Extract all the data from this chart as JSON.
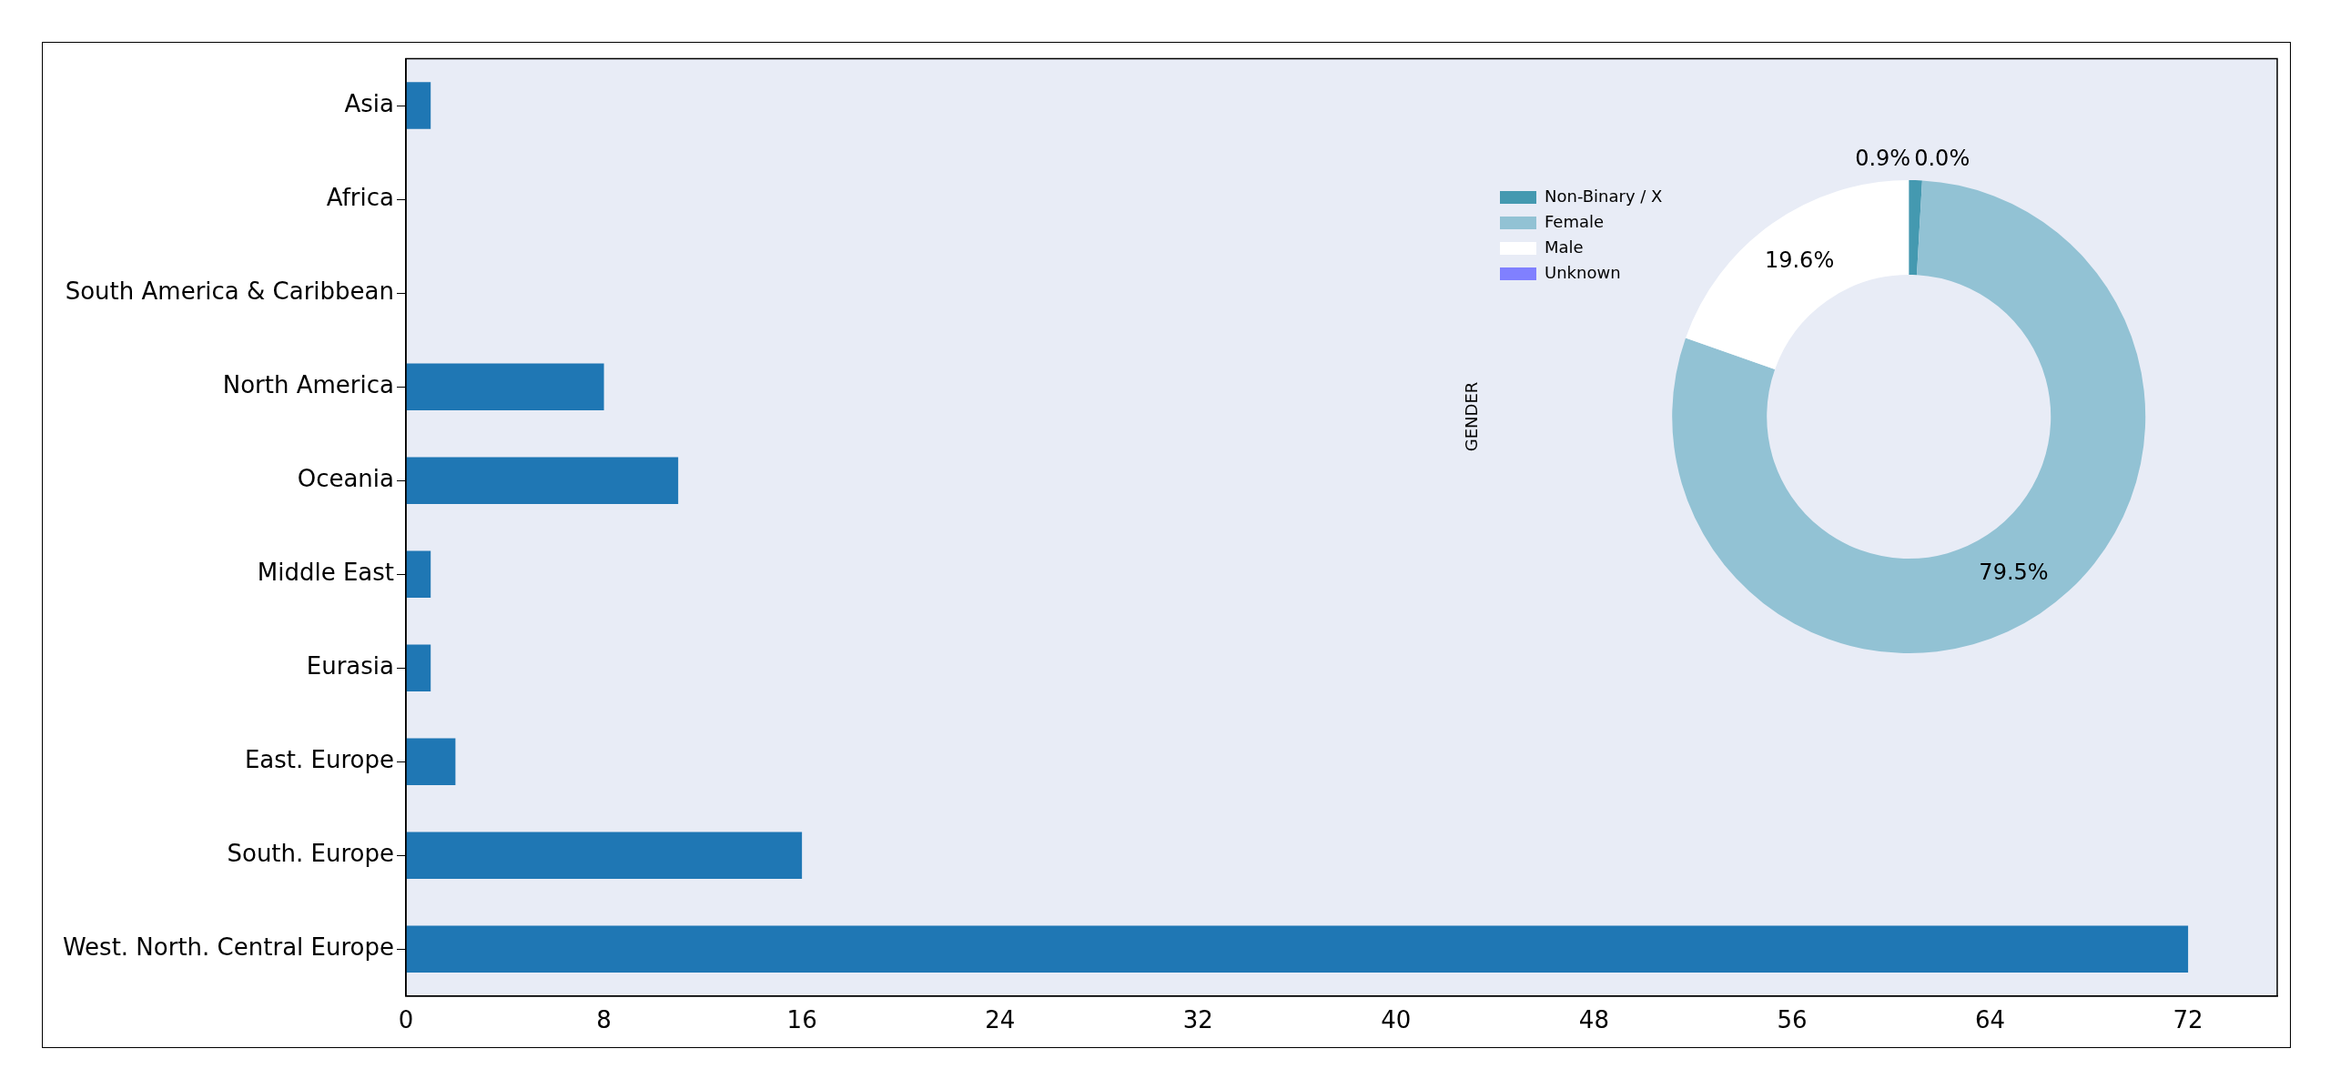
{
  "chart_data": [
    {
      "type": "bar",
      "orientation": "horizontal",
      "categories": [
        "Asia",
        "Africa",
        "South America & Caribbean",
        "North America",
        "Oceania",
        "Middle East",
        "Eurasia",
        "East. Europe",
        "South. Europe",
        "West. North. Central Europe"
      ],
      "values": [
        1,
        0,
        0,
        8,
        11,
        1,
        1,
        2,
        16,
        72
      ],
      "color": "#1f77b4",
      "xlim": [
        0,
        75.6
      ],
      "xticks": [
        0,
        8,
        16,
        24,
        32,
        40,
        48,
        56,
        64,
        72
      ],
      "grid": false,
      "legend": false
    },
    {
      "type": "donut",
      "ylabel": "GENDER",
      "categories": [
        "Non-Binary / X",
        "Female",
        "Male",
        "Unknown"
      ],
      "values": [
        0.9,
        79.5,
        19.6,
        0.0
      ],
      "colors": [
        "#4499b0",
        "#92c2d4",
        "#ffffff",
        "#8080ff"
      ],
      "value_labels": [
        "0.9%",
        "79.5%",
        "19.6%",
        "0.0%"
      ],
      "legend": "top left"
    }
  ]
}
